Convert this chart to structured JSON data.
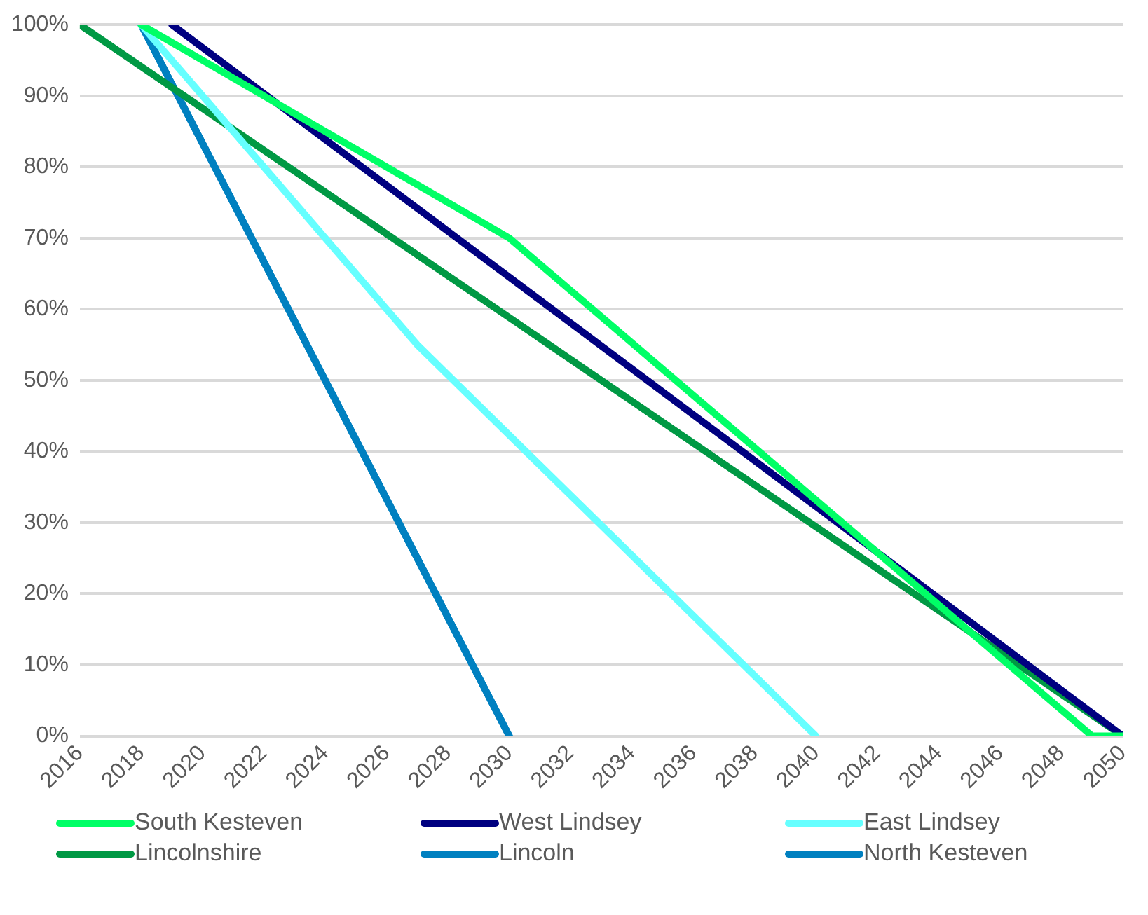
{
  "chart_data": {
    "type": "line",
    "xlim": [
      2016,
      2050
    ],
    "xticks": [
      2016,
      2018,
      2020,
      2022,
      2024,
      2026,
      2028,
      2030,
      2032,
      2034,
      2036,
      2038,
      2040,
      2042,
      2044,
      2046,
      2048,
      2050
    ],
    "ylim": [
      0,
      100
    ],
    "yticks": [
      {
        "value": 0,
        "label": "0%"
      },
      {
        "value": 10,
        "label": "10%"
      },
      {
        "value": 20,
        "label": "20%"
      },
      {
        "value": 30,
        "label": "30%"
      },
      {
        "value": 40,
        "label": "40%"
      },
      {
        "value": 50,
        "label": "50%"
      },
      {
        "value": 60,
        "label": "60%"
      },
      {
        "value": 70,
        "label": "70%"
      },
      {
        "value": 80,
        "label": "80%"
      },
      {
        "value": 90,
        "label": "90%"
      },
      {
        "value": 100,
        "label": "100%"
      }
    ],
    "grid": "y",
    "legend": "bottom",
    "marker": "none",
    "line_style": "solid",
    "series": [
      {
        "name": "South Kesteven",
        "color": "#00ff66",
        "x": [
          2018,
          2030,
          2049,
          2050
        ],
        "values": [
          100,
          70,
          0,
          0
        ]
      },
      {
        "name": "West Lindsey",
        "color": "#000080",
        "x": [
          2019,
          2050
        ],
        "values": [
          100,
          0
        ]
      },
      {
        "name": "East Lindsey",
        "color": "#66ffff",
        "x": [
          2018,
          2027,
          2040
        ],
        "values": [
          100,
          55,
          0
        ]
      },
      {
        "name": "Lincolnshire",
        "color": "#009944",
        "x": [
          2016,
          2050
        ],
        "values": [
          100,
          0
        ]
      },
      {
        "name": "Lincoln",
        "color": "#0080c0",
        "x": [
          2018,
          2030
        ],
        "values": [
          100,
          0
        ]
      },
      {
        "name": "North Kesteven",
        "color": "#0080c0",
        "x": [
          2018,
          2030
        ],
        "values": [
          100,
          0
        ]
      }
    ]
  }
}
